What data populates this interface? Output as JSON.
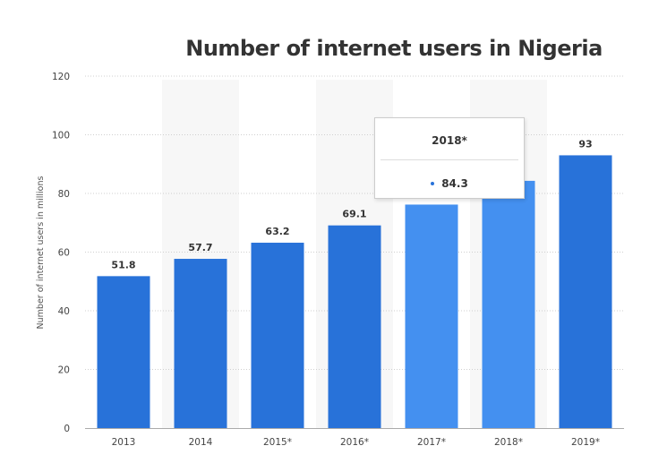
{
  "chart_data": {
    "type": "bar",
    "title": "Number of internet users in Nigeria",
    "xlabel": "",
    "ylabel": "Number of internet users in millions",
    "categories": [
      "2013",
      "2014",
      "2015*",
      "2016*",
      "2017*",
      "2018*",
      "2019*"
    ],
    "values": [
      51.8,
      57.7,
      63.2,
      69.1,
      76.2,
      84.3,
      93
    ],
    "data_labels": [
      "51.8",
      "57.7",
      "63.2",
      "69.1",
      "",
      "",
      "93"
    ],
    "ylim": [
      0,
      120
    ],
    "yticks": [
      0,
      20,
      40,
      60,
      80,
      100,
      120
    ],
    "grid": true,
    "highlighted_index": 5,
    "alt_band_indices": [
      1,
      3,
      5
    ]
  },
  "tooltip": {
    "title": "2018*",
    "value": "84.3"
  },
  "colors": {
    "bar": "#2872d9",
    "bar_highlight": "#4490f0",
    "band": "#f7f7f7",
    "grid": "#cfcfcf",
    "tooltip_dot": "#2872d9"
  }
}
